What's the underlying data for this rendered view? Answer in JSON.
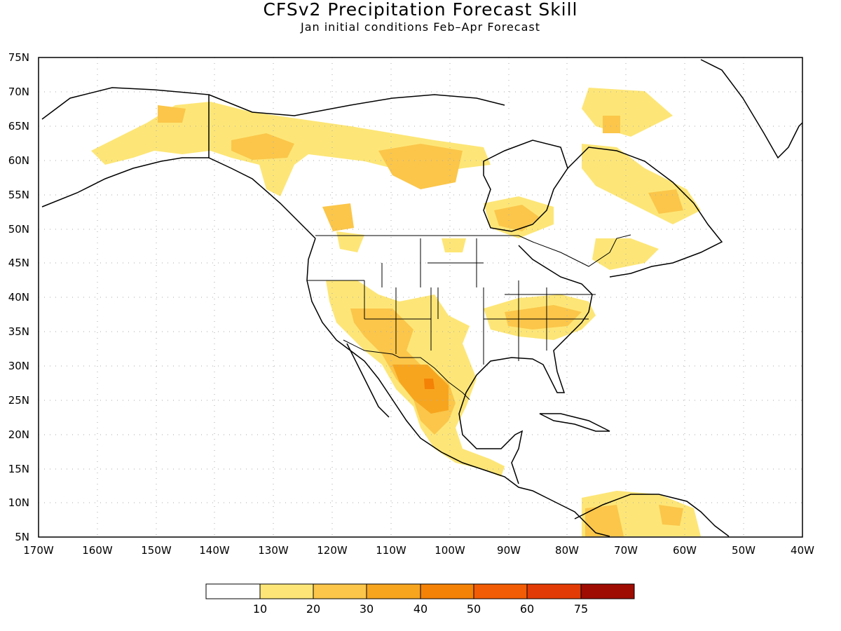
{
  "title": "CFSv2 Precipitation Forecast Skill",
  "subtitle": "Jan initial conditions  Feb–Apr Forecast",
  "map": {
    "lat_labels": [
      "75N",
      "70N",
      "65N",
      "60N",
      "55N",
      "50N",
      "45N",
      "40N",
      "35N",
      "30N",
      "25N",
      "20N",
      "15N",
      "10N",
      "5N"
    ],
    "lon_labels": [
      "170W",
      "160W",
      "150W",
      "140W",
      "130W",
      "120W",
      "110W",
      "100W",
      "90W",
      "80W",
      "70W",
      "60W",
      "50W",
      "40W"
    ],
    "lat_range": [
      5,
      75
    ],
    "lon_range": [
      -170,
      -40
    ],
    "gridlines": "dotted"
  },
  "legend": {
    "labels": [
      "10",
      "20",
      "30",
      "40",
      "50",
      "60",
      "75"
    ],
    "colors": [
      "#ffffff",
      "#fde677",
      "#fbc64a",
      "#f7a51f",
      "#f48207",
      "#f25c04",
      "#e33b05",
      "#c51f04",
      "#9e0c02"
    ]
  }
}
